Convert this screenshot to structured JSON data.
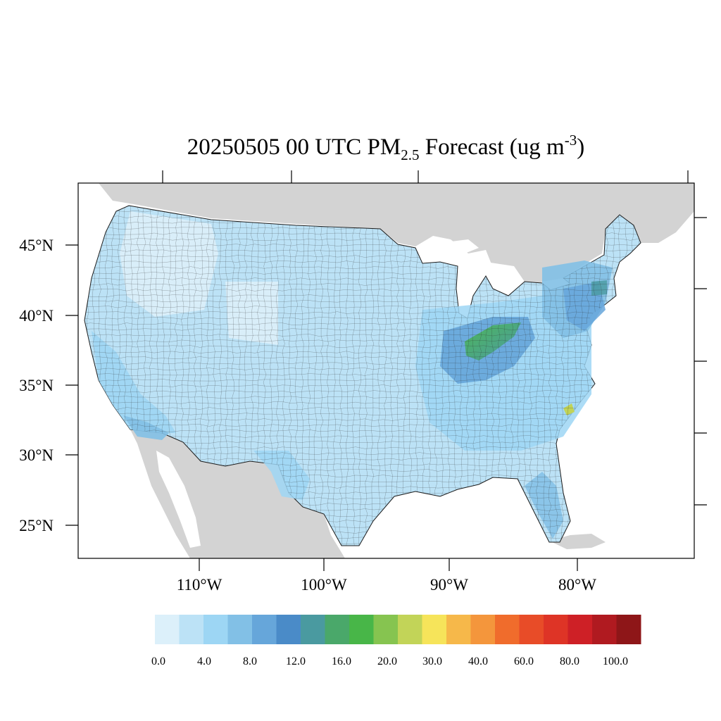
{
  "title": {
    "prefix": "20250505 00 UTC PM",
    "subscript": "2.5",
    "suffix": " Forecast (ug m",
    "superscript": "-3",
    "close": ")"
  },
  "lat_labels": [
    "45°N",
    "40°N",
    "35°N",
    "30°N",
    "25°N"
  ],
  "lon_labels": [
    "110°W",
    "100°W",
    "90°W",
    "80°W"
  ],
  "colorbar": {
    "colors": [
      "#dcf0fa",
      "#bce2f6",
      "#9dd6f4",
      "#82c0e6",
      "#66a6da",
      "#4a8bc8",
      "#4a9aa0",
      "#4aa86a",
      "#48b648",
      "#86c450",
      "#c2d458",
      "#f6e45a",
      "#f6b84a",
      "#f4963c",
      "#f06c2c",
      "#e84c28",
      "#de3426",
      "#ce2026",
      "#b01a20",
      "#8e1618"
    ],
    "labels": [
      "0.0",
      "4.0",
      "8.0",
      "12.0",
      "16.0",
      "20.0",
      "30.0",
      "40.0",
      "60.0",
      "80.0",
      "100.0"
    ]
  }
}
